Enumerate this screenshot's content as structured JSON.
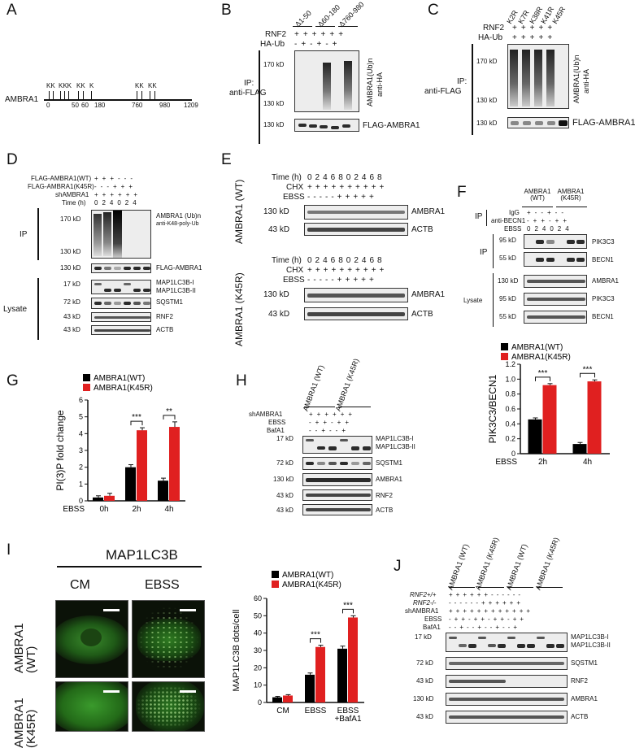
{
  "panels": {
    "A": {
      "letter": "A",
      "protein": "AMBRA1",
      "sites": [
        "0",
        "50",
        "60",
        "180",
        "760",
        "980",
        "1209"
      ],
      "k_groups": [
        "KK",
        "KKK",
        "KK",
        "K",
        "KK",
        "KK"
      ]
    },
    "B": {
      "letter": "B",
      "constructs": [
        "Δ1-50",
        "Δ60-180",
        "Δ760-980"
      ],
      "rows": [
        {
          "label": "RNF2",
          "signs": "++++++"
        },
        {
          "label": "HA-Ub",
          "signs": "-+-+-+"
        }
      ],
      "ip": [
        "IP:",
        "anti-FLAG"
      ],
      "markers": [
        "170 kD",
        "130 kD",
        "130 kD"
      ],
      "right_labels": [
        "AMBRA1(Ub)n",
        "anti-HA"
      ],
      "bottom_label": "FLAG-AMBRA1"
    },
    "C": {
      "letter": "C",
      "constructs": [
        "K2R",
        "K7R",
        "K38R",
        "K41R",
        "K45R"
      ],
      "rows": [
        {
          "label": "RNF2",
          "signs": "+++++"
        },
        {
          "label": "HA-Ub",
          "signs": "+++++"
        }
      ],
      "ip": [
        "IP:",
        "anti-FLAG"
      ],
      "markers": [
        "170 kD",
        "130 kD",
        "130 kD"
      ],
      "right_labels": [
        "AMBRA1(Ub)n",
        "anti-HA"
      ],
      "bottom_label": "FLAG-AMBRA1"
    },
    "D": {
      "letter": "D",
      "rows": [
        {
          "label": "FLAG-AMBRA1(WT)",
          "signs": "+++---"
        },
        {
          "label": "FLAG-AMBRA1(K45R)",
          "signs": "---+++"
        },
        {
          "label": "shAMBRA1",
          "signs": "++++++"
        },
        {
          "label": "Time (h)",
          "signs": "024024"
        }
      ],
      "ip_label": "IP",
      "lysate_label": "Lysate",
      "markers": [
        "170 kD",
        "130 kD",
        "130 kD",
        "17 kD",
        "72 kD",
        "43 kD",
        "43 kD"
      ],
      "right_labels": [
        "AMBRA1 (Ub)n",
        "anti-K48-poly-Ub"
      ],
      "blots": [
        "FLAG-AMBRA1",
        "MAP1LC3B-I",
        "MAP1LC3B-II",
        "SQSTM1",
        "RNF2",
        "ACTB"
      ]
    },
    "E": {
      "letter": "E",
      "wt": {
        "side": "AMBRA1 (WT)",
        "rows": [
          {
            "label": "Time (h)",
            "signs": "0246802468"
          },
          {
            "label": "CHX",
            "signs": "++++++++++"
          },
          {
            "label": "EBSS",
            "signs": "-----+++++"
          }
        ]
      },
      "k45r": {
        "side": "AMBRA1 (K45R)",
        "rows": [
          {
            "label": "Time (h)",
            "signs": "0246802468"
          },
          {
            "label": "CHX",
            "signs": "++++++++++"
          },
          {
            "label": "EBSS",
            "signs": "-----+++++"
          }
        ]
      },
      "markers": [
        "130 kD",
        "43 kD"
      ],
      "blots": [
        "AMBRA1",
        "ACTB"
      ]
    },
    "F": {
      "letter": "F",
      "groups": [
        "AMBRA1 (WT)",
        "AMBRA1 (K45R)"
      ],
      "rows": [
        {
          "label": "IgG",
          "signs": "+--+--"
        },
        {
          "label": "anti-BECN1",
          "signs": "-++-++"
        },
        {
          "label": "EBSS",
          "signs": "024024"
        }
      ],
      "ip_label": "IP",
      "ip_label2": "IP",
      "lysate_label": "Lysate",
      "markers": [
        "95 kD",
        "55 kD",
        "130 kD",
        "95 kD",
        "55 kD"
      ],
      "blots": [
        "PIK3C3",
        "BECN1",
        "AMBRA1",
        "PIK3C3",
        "BECN1"
      ]
    },
    "F_chart": {
      "ylabel": "PIK3C3/BECN1",
      "xlabel_prefix": "EBSS",
      "legend": [
        "AMBRA1(WT)",
        "AMBRA1(K45R)"
      ],
      "sig": [
        "***",
        "***"
      ]
    },
    "G": {
      "letter": "G",
      "ylabel": "PI(3)P fold change",
      "xlabel_prefix": "EBSS",
      "legend": [
        "AMBRA1(WT)",
        "AMBRA1(K45R)"
      ],
      "sig": [
        "***",
        "**"
      ]
    },
    "H": {
      "letter": "H",
      "groups": [
        "AMBRA1 (WT)",
        "AMBRA1 (K45R)"
      ],
      "rows": [
        {
          "label": "shAMBRA1",
          "signs": "++++++"
        },
        {
          "label": "EBSS",
          "signs": "-++-++"
        },
        {
          "label": "BafA1",
          "signs": "--+--+"
        }
      ],
      "markers": [
        "17 kD",
        "72 kD",
        "130 kD",
        "43 kD",
        "43 kD"
      ],
      "blots": [
        "MAP1LC3B-I",
        "MAP1LC3B-II",
        "SQSTM1",
        "AMBRA1",
        "RNF2",
        "ACTB"
      ]
    },
    "I": {
      "letter": "I",
      "title": "MAP1LC3B",
      "cols": [
        "CM",
        "EBSS"
      ],
      "rows": [
        "AMBRA1 (WT)",
        "AMBRA1 (K45R)"
      ],
      "ylabel": "MAP1LC3B dots/cell",
      "legend": [
        "AMBRA1(WT)",
        "AMBRA1(K45R)"
      ],
      "sig": [
        "***",
        "***"
      ]
    },
    "J": {
      "letter": "J",
      "groups": [
        "AMBRA1 (WT)",
        "AMBRA1 (K45R)",
        "AMBRA1 (WT)",
        "AMBRA1 (K45R)"
      ],
      "rows": [
        {
          "label": "RNF2+/+",
          "signs": "++++++------"
        },
        {
          "label": "RNF2-/-",
          "signs": "------++++++"
        },
        {
          "label": "shAMBRA1",
          "signs": "++++++++++++"
        },
        {
          "label": "EBSS",
          "signs": "-++-++-++-++"
        },
        {
          "label": "BafA1",
          "signs": "--+--+--+--+"
        }
      ],
      "markers": [
        "17 kD",
        "72 kD",
        "43 kD",
        "130 kD",
        "43 kD"
      ],
      "blots": [
        "MAP1LC3B-I",
        "MAP1LC3B-II",
        "SQSTM1",
        "RNF2",
        "AMBRA1",
        "ACTB"
      ]
    }
  },
  "chart_data": [
    {
      "type": "bar",
      "ylabel": "PIK3C3/BECN1",
      "categories": [
        "2h",
        "4h"
      ],
      "series": [
        {
          "name": "AMBRA1(WT)",
          "values": [
            0.46,
            0.13
          ],
          "err": [
            0.02,
            0.02
          ]
        },
        {
          "name": "AMBRA1(K45R)",
          "values": [
            0.92,
            0.97
          ],
          "err": [
            0.02,
            0.02
          ]
        }
      ],
      "ylim": [
        0,
        1.2
      ],
      "yticks": [
        0,
        0.2,
        0.4,
        0.6,
        0.8,
        1.0,
        1.2
      ],
      "ytick_labels": [
        "0",
        "0.2",
        "0.4",
        "0.6",
        "0.8",
        "1.0",
        "1.2"
      ],
      "colors": [
        "#000000",
        "#e02020"
      ]
    },
    {
      "type": "bar",
      "ylabel": "PI(3)P fold change",
      "categories": [
        "0h",
        "2h",
        "4h"
      ],
      "series": [
        {
          "name": "AMBRA1(WT)",
          "values": [
            0.2,
            2.0,
            1.2
          ],
          "err": [
            0.1,
            0.15,
            0.15
          ]
        },
        {
          "name": "AMBRA1(K45R)",
          "values": [
            0.3,
            4.2,
            4.4
          ],
          "err": [
            0.15,
            0.15,
            0.3
          ]
        }
      ],
      "ylim": [
        0,
        6
      ],
      "yticks": [
        0,
        1,
        2,
        3,
        4,
        5,
        6
      ],
      "ytick_labels": [
        "0",
        "1",
        "2",
        "3",
        "4",
        "5",
        "6"
      ],
      "colors": [
        "#000000",
        "#e02020"
      ]
    },
    {
      "type": "bar",
      "ylabel": "MAP1LC3B dots/cell",
      "categories": [
        "CM",
        "EBSS",
        "EBSS +BafA1"
      ],
      "series": [
        {
          "name": "AMBRA1(WT)",
          "values": [
            3,
            16,
            31
          ],
          "err": [
            0.5,
            1,
            1.5
          ]
        },
        {
          "name": "AMBRA1(K45R)",
          "values": [
            4,
            32,
            49
          ],
          "err": [
            0.5,
            1,
            1
          ]
        }
      ],
      "ylim": [
        0,
        60
      ],
      "yticks": [
        0,
        10,
        20,
        30,
        40,
        50,
        60
      ],
      "ytick_labels": [
        "0",
        "10",
        "20",
        "30",
        "40",
        "50",
        "60"
      ],
      "colors": [
        "#000000",
        "#e02020"
      ]
    }
  ]
}
